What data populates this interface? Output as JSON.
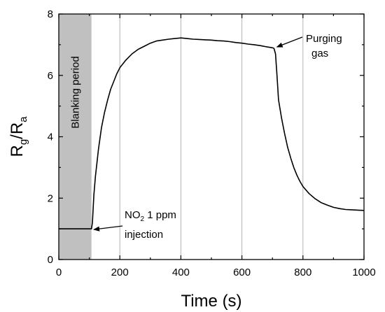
{
  "chart_data": {
    "type": "line",
    "xlabel": "Time (s)",
    "ylabel": {
      "base": "R",
      "sub1": "g",
      "sep": "/",
      "base2": "R",
      "sub2": "a"
    },
    "xlim": [
      0,
      1000
    ],
    "ylim": [
      0,
      8
    ],
    "x_ticks": [
      0,
      200,
      400,
      600,
      800,
      1000
    ],
    "y_ticks": [
      0,
      2,
      4,
      6,
      8
    ],
    "vertical_grid_x": [
      200,
      400,
      600,
      800
    ],
    "shaded_region": {
      "x": [
        0,
        107
      ],
      "label": "Blanking period",
      "color": "#c0c0c0"
    },
    "annotations": [
      {
        "id": "injection",
        "line1_prefix": "NO",
        "line1_sub": "2",
        "line1_suffix": " 1 ppm",
        "line2": "injection",
        "point": [
          110,
          1.0
        ]
      },
      {
        "id": "purging",
        "line1": "Purging",
        "line2": "gas",
        "point": [
          710,
          6.88
        ]
      }
    ],
    "series": [
      {
        "color": "#000000",
        "x": [
          0,
          100,
          107,
          110,
          115,
          120,
          130,
          140,
          150,
          160,
          170,
          180,
          190,
          200,
          220,
          240,
          260,
          280,
          300,
          320,
          340,
          360,
          380,
          400,
          420,
          440,
          460,
          480,
          500,
          520,
          540,
          560,
          580,
          600,
          620,
          640,
          660,
          680,
          700,
          705,
          710,
          715,
          720,
          730,
          740,
          750,
          760,
          770,
          780,
          790,
          800,
          820,
          840,
          860,
          880,
          900,
          920,
          940,
          960,
          980,
          1000
        ],
        "y": [
          1.0,
          1.0,
          1.0,
          1.2,
          2.1,
          2.7,
          3.6,
          4.3,
          4.8,
          5.2,
          5.55,
          5.8,
          6.05,
          6.25,
          6.5,
          6.7,
          6.85,
          6.95,
          7.05,
          7.12,
          7.15,
          7.18,
          7.2,
          7.22,
          7.2,
          7.18,
          7.17,
          7.16,
          7.15,
          7.13,
          7.12,
          7.1,
          7.07,
          7.05,
          7.02,
          7.0,
          6.97,
          6.93,
          6.9,
          6.88,
          6.7,
          6.0,
          5.2,
          4.6,
          4.1,
          3.65,
          3.3,
          3.0,
          2.75,
          2.55,
          2.38,
          2.15,
          1.98,
          1.85,
          1.77,
          1.7,
          1.66,
          1.63,
          1.62,
          1.61,
          1.6
        ]
      }
    ]
  }
}
